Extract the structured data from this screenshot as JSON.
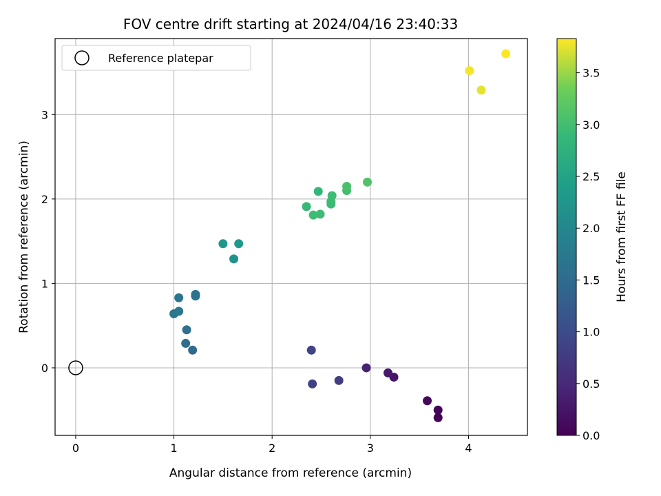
{
  "chart_data": {
    "type": "scatter",
    "title": "FOV centre drift starting at 2024/04/16 23:40:33",
    "xlabel": "Angular distance from reference (arcmin)",
    "ylabel": "Rotation from reference (arcmin)",
    "xlim": [
      -0.21,
      4.6
    ],
    "ylim": [
      -0.8,
      3.9
    ],
    "xticks": [
      "0",
      "1",
      "2",
      "3",
      "4"
    ],
    "xtick_values": [
      0,
      1,
      2,
      3,
      4
    ],
    "yticks": [
      "0",
      "1",
      "2",
      "3"
    ],
    "ytick_values": [
      0,
      1,
      2,
      3
    ],
    "grid": true,
    "legend": {
      "placement": "top-left",
      "entries": [
        "Reference platepar"
      ]
    },
    "reference_point": {
      "x": 0,
      "y": 0
    },
    "colorbar": {
      "label": "Hours from first FF file",
      "colormap": "viridis",
      "range": [
        0,
        3.83
      ],
      "ticks": [
        "0.0",
        "0.5",
        "1.0",
        "1.5",
        "2.0",
        "2.5",
        "3.0",
        "3.5"
      ],
      "tick_values": [
        0,
        0.5,
        1.0,
        1.5,
        2.0,
        2.5,
        3.0,
        3.5
      ]
    },
    "points": [
      {
        "x": 3.69,
        "y": -0.59,
        "c": 0.0
      },
      {
        "x": 3.69,
        "y": -0.5,
        "c": 0.05
      },
      {
        "x": 3.58,
        "y": -0.39,
        "c": 0.1
      },
      {
        "x": 3.24,
        "y": -0.11,
        "c": 0.25
      },
      {
        "x": 3.18,
        "y": -0.06,
        "c": 0.3
      },
      {
        "x": 2.96,
        "y": 0.0,
        "c": 0.4
      },
      {
        "x": 2.68,
        "y": -0.15,
        "c": 0.8
      },
      {
        "x": 2.41,
        "y": -0.19,
        "c": 0.85
      },
      {
        "x": 2.4,
        "y": 0.21,
        "c": 0.9
      },
      {
        "x": 1.19,
        "y": 0.21,
        "c": 1.5
      },
      {
        "x": 1.12,
        "y": 0.29,
        "c": 1.55
      },
      {
        "x": 1.13,
        "y": 0.45,
        "c": 1.6
      },
      {
        "x": 1.0,
        "y": 0.64,
        "c": 1.7
      },
      {
        "x": 1.05,
        "y": 0.67,
        "c": 1.72
      },
      {
        "x": 1.05,
        "y": 0.83,
        "c": 1.68
      },
      {
        "x": 1.22,
        "y": 0.85,
        "c": 1.65
      },
      {
        "x": 1.22,
        "y": 0.87,
        "c": 1.65
      },
      {
        "x": 1.61,
        "y": 1.29,
        "c": 2.2
      },
      {
        "x": 1.5,
        "y": 1.47,
        "c": 2.25
      },
      {
        "x": 1.66,
        "y": 1.47,
        "c": 2.3
      },
      {
        "x": 2.42,
        "y": 1.81,
        "c": 2.95
      },
      {
        "x": 2.49,
        "y": 1.82,
        "c": 2.95
      },
      {
        "x": 2.35,
        "y": 1.91,
        "c": 2.9
      },
      {
        "x": 2.6,
        "y": 1.94,
        "c": 2.92
      },
      {
        "x": 2.6,
        "y": 1.97,
        "c": 2.93
      },
      {
        "x": 2.61,
        "y": 2.04,
        "c": 2.95
      },
      {
        "x": 2.47,
        "y": 2.09,
        "c": 2.85
      },
      {
        "x": 2.76,
        "y": 2.1,
        "c": 3.0
      },
      {
        "x": 2.76,
        "y": 2.15,
        "c": 3.05
      },
      {
        "x": 2.97,
        "y": 2.2,
        "c": 3.1
      },
      {
        "x": 4.13,
        "y": 3.29,
        "c": 3.75
      },
      {
        "x": 4.01,
        "y": 3.52,
        "c": 3.8
      },
      {
        "x": 4.38,
        "y": 3.72,
        "c": 3.83
      }
    ]
  }
}
